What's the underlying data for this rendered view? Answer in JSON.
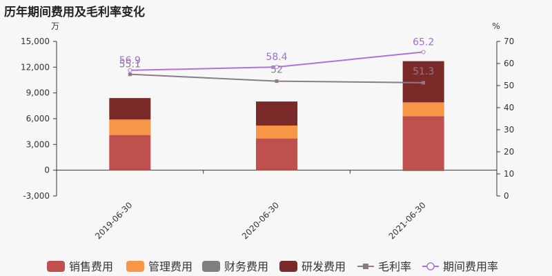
{
  "title": "历年期间费用及毛利率变化",
  "chart_data": {
    "type": "bar",
    "stacked": true,
    "categories": [
      "2019-06-30",
      "2020-06-30",
      "2021-06-30"
    ],
    "series": [
      {
        "name": "销售费用",
        "color": "#c0504d",
        "values": [
          4100,
          3700,
          6300
        ]
      },
      {
        "name": "管理费用",
        "color": "#f79646",
        "values": [
          1800,
          1500,
          1600
        ]
      },
      {
        "name": "财务费用",
        "color": "#7f7f7f",
        "values": [
          0,
          0,
          -100
        ]
      },
      {
        "name": "研发费用",
        "color": "#7b2a2a",
        "values": [
          2500,
          2800,
          4800
        ]
      }
    ],
    "lines": [
      {
        "name": "毛利率",
        "color": "#8a7a8a",
        "marker": "square",
        "values": [
          55.1,
          52,
          51.3
        ]
      },
      {
        "name": "期间费用率",
        "color": "#b070e0",
        "marker": "circle",
        "values": [
          56.9,
          58.4,
          65.2
        ]
      }
    ],
    "y_left": {
      "unit": "万",
      "min": -3000,
      "max": 15000,
      "ticks": [
        "15,000",
        "12,000",
        "9,000",
        "6,000",
        "3,000",
        "0",
        "-3,000"
      ]
    },
    "y_right": {
      "unit": "%",
      "min": 0,
      "max": 70,
      "ticks": [
        "70",
        "60",
        "50",
        "40",
        "30",
        "20",
        "10",
        "0"
      ]
    },
    "legend": "bottom",
    "grid": false
  }
}
